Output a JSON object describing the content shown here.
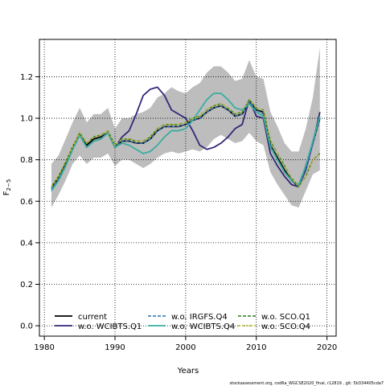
{
  "chart_data": {
    "type": "line",
    "xlabel": "Years",
    "ylabel_main": "F",
    "ylabel_sub": "2−5",
    "xlim": [
      1979.3,
      2021.3
    ],
    "ylim": [
      -0.05,
      1.38
    ],
    "xticks": [
      1980,
      1990,
      2000,
      2010,
      2020
    ],
    "xtick_labels": [
      "1980",
      "1990",
      "2000",
      "2010",
      "2020"
    ],
    "yticks": [
      0.0,
      0.2,
      0.4,
      0.6,
      0.8,
      1.0,
      1.2
    ],
    "ytick_labels": [
      "0.0",
      "0.2",
      "0.4",
      "0.6",
      "0.8",
      "1.0",
      "1.2"
    ],
    "grid": true,
    "grid_style": "dotted",
    "legend_position": "bottom-left",
    "credit": "stockassessment.org, cod6a_WGCSE2020_final, r12819 , git: 5b334405cda7",
    "years": [
      1981,
      1982,
      1983,
      1984,
      1985,
      1986,
      1987,
      1988,
      1989,
      1990,
      1991,
      1992,
      1993,
      1994,
      1995,
      1996,
      1997,
      1998,
      1999,
      2000,
      2001,
      2002,
      2003,
      2004,
      2005,
      2006,
      2007,
      2008,
      2009,
      2010,
      2011,
      2012,
      2013,
      2014,
      2015,
      2016,
      2017,
      2018,
      2019
    ],
    "band": {
      "name": "confidence band",
      "color": "#bdbdbd",
      "upper": [
        0.78,
        0.82,
        0.9,
        0.98,
        1.05,
        0.98,
        1.02,
        1.02,
        1.05,
        0.95,
        1.0,
        1.0,
        1.02,
        1.03,
        1.05,
        1.1,
        1.12,
        1.15,
        1.13,
        1.12,
        1.15,
        1.17,
        1.22,
        1.25,
        1.25,
        1.22,
        1.18,
        1.19,
        1.28,
        1.2,
        1.19,
        1.03,
        0.96,
        0.88,
        0.84,
        0.84,
        0.95,
        1.1,
        1.34
      ],
      "lower": [
        0.57,
        0.63,
        0.7,
        0.78,
        0.82,
        0.78,
        0.81,
        0.81,
        0.83,
        0.77,
        0.8,
        0.8,
        0.78,
        0.76,
        0.78,
        0.81,
        0.83,
        0.84,
        0.83,
        0.84,
        0.85,
        0.84,
        0.86,
        0.9,
        0.92,
        0.9,
        0.88,
        0.89,
        0.93,
        0.89,
        0.87,
        0.74,
        0.68,
        0.63,
        0.58,
        0.57,
        0.65,
        0.73,
        0.75
      ]
    },
    "series": [
      {
        "name": "current",
        "color": "#000000",
        "dash": "solid",
        "width": 1.8,
        "values": [
          0.67,
          0.71,
          0.78,
          0.86,
          0.92,
          0.87,
          0.9,
          0.91,
          0.93,
          0.86,
          0.89,
          0.89,
          0.88,
          0.88,
          0.9,
          0.94,
          0.96,
          0.96,
          0.96,
          0.97,
          0.99,
          1.0,
          1.03,
          1.05,
          1.06,
          1.04,
          1.01,
          1.02,
          1.08,
          1.04,
          1.03,
          0.87,
          0.81,
          0.75,
          0.7,
          0.67,
          0.77,
          0.88,
          1.0
        ]
      },
      {
        "name": "w.o. WCIBTS.Q1",
        "color": "#32287a",
        "dash": "solid",
        "width": 1.8,
        "values": [
          0.66,
          0.7,
          0.77,
          0.85,
          0.92,
          0.86,
          0.89,
          0.9,
          0.93,
          0.86,
          0.91,
          0.94,
          1.02,
          1.11,
          1.14,
          1.15,
          1.11,
          1.04,
          1.02,
          1.0,
          0.94,
          0.87,
          0.85,
          0.86,
          0.88,
          0.91,
          0.95,
          0.97,
          1.09,
          1.01,
          1.0,
          0.83,
          0.77,
          0.72,
          0.68,
          0.67,
          0.75,
          0.88,
          1.03
        ]
      },
      {
        "name": "w.o. IRGFS.Q4",
        "color": "#2f6fb0",
        "dash": "4,2",
        "width": 1.5,
        "values": [
          0.66,
          0.71,
          0.77,
          0.85,
          0.92,
          0.86,
          0.89,
          0.9,
          0.93,
          0.86,
          0.89,
          0.89,
          0.88,
          0.88,
          0.9,
          0.94,
          0.96,
          0.96,
          0.96,
          0.97,
          0.99,
          1.0,
          1.03,
          1.05,
          1.06,
          1.04,
          1.01,
          1.02,
          1.08,
          1.04,
          1.02,
          0.87,
          0.8,
          0.74,
          0.7,
          0.67,
          0.76,
          0.88,
          1.0
        ]
      },
      {
        "name": "w.o. WCIBTS.Q4",
        "color": "#3aada0",
        "dash": "solid",
        "width": 1.8,
        "values": [
          0.65,
          0.7,
          0.77,
          0.85,
          0.92,
          0.86,
          0.89,
          0.9,
          0.93,
          0.86,
          0.88,
          0.87,
          0.85,
          0.83,
          0.84,
          0.87,
          0.91,
          0.94,
          0.94,
          0.95,
          0.99,
          1.04,
          1.09,
          1.12,
          1.12,
          1.09,
          1.05,
          1.04,
          1.07,
          1.03,
          1.01,
          0.86,
          0.8,
          0.74,
          0.7,
          0.68,
          0.77,
          0.89,
          1.01
        ]
      },
      {
        "name": "w.o. SCO.Q1",
        "color": "#2a7a1e",
        "dash": "4,2",
        "width": 1.5,
        "values": [
          0.67,
          0.72,
          0.79,
          0.86,
          0.93,
          0.88,
          0.91,
          0.92,
          0.94,
          0.87,
          0.9,
          0.9,
          0.89,
          0.89,
          0.91,
          0.95,
          0.97,
          0.97,
          0.97,
          0.98,
          1.0,
          1.01,
          1.04,
          1.06,
          1.07,
          1.05,
          1.02,
          1.03,
          1.09,
          1.05,
          1.04,
          0.89,
          0.83,
          0.77,
          0.71,
          0.67,
          0.72,
          0.8,
          0.83
        ]
      },
      {
        "name": "w.o. SCO.Q4",
        "color": "#b3b12c",
        "dash": "3,2",
        "width": 1.5,
        "values": [
          0.67,
          0.72,
          0.79,
          0.86,
          0.93,
          0.88,
          0.91,
          0.92,
          0.94,
          0.87,
          0.9,
          0.9,
          0.89,
          0.89,
          0.91,
          0.95,
          0.97,
          0.97,
          0.97,
          0.98,
          1.0,
          1.01,
          1.04,
          1.06,
          1.07,
          1.05,
          1.02,
          1.03,
          1.09,
          1.05,
          1.04,
          0.89,
          0.83,
          0.77,
          0.71,
          0.67,
          0.72,
          0.8,
          0.83
        ]
      }
    ]
  }
}
